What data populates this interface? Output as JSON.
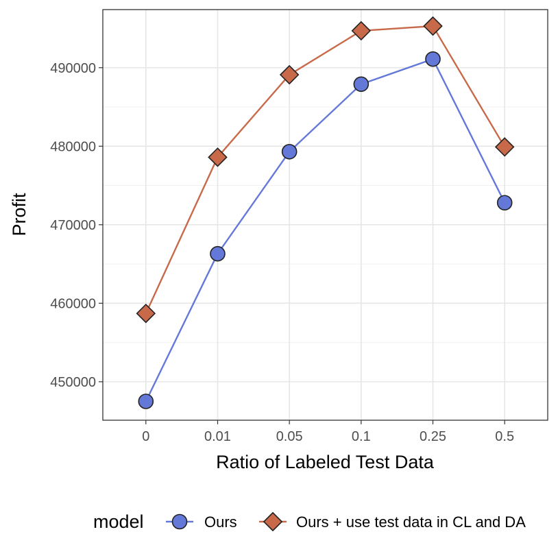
{
  "chart_data": {
    "type": "line",
    "categories": [
      "0",
      "0.01",
      "0.05",
      "0.1",
      "0.25",
      "0.5"
    ],
    "series": [
      {
        "name": "Ours",
        "values": [
          447500,
          466300,
          479300,
          487900,
          491100,
          472800
        ],
        "color": "#6478d8",
        "marker": "circle"
      },
      {
        "name": "Ours + use test data in CL and DA",
        "values": [
          458700,
          478600,
          489100,
          494700,
          495300,
          479900
        ],
        "color": "#c8694a",
        "marker": "diamond"
      }
    ],
    "title": "",
    "xlabel": "Ratio of Labeled Test Data",
    "ylabel": "Profit",
    "ylim": [
      445100,
      497400
    ],
    "yticks": [
      450000,
      460000,
      470000,
      480000,
      490000
    ],
    "yticks_labels": [
      "450000",
      "460000",
      "470000",
      "480000",
      "490000"
    ],
    "grid": true,
    "legend": {
      "title": "model",
      "position": "bottom"
    }
  }
}
